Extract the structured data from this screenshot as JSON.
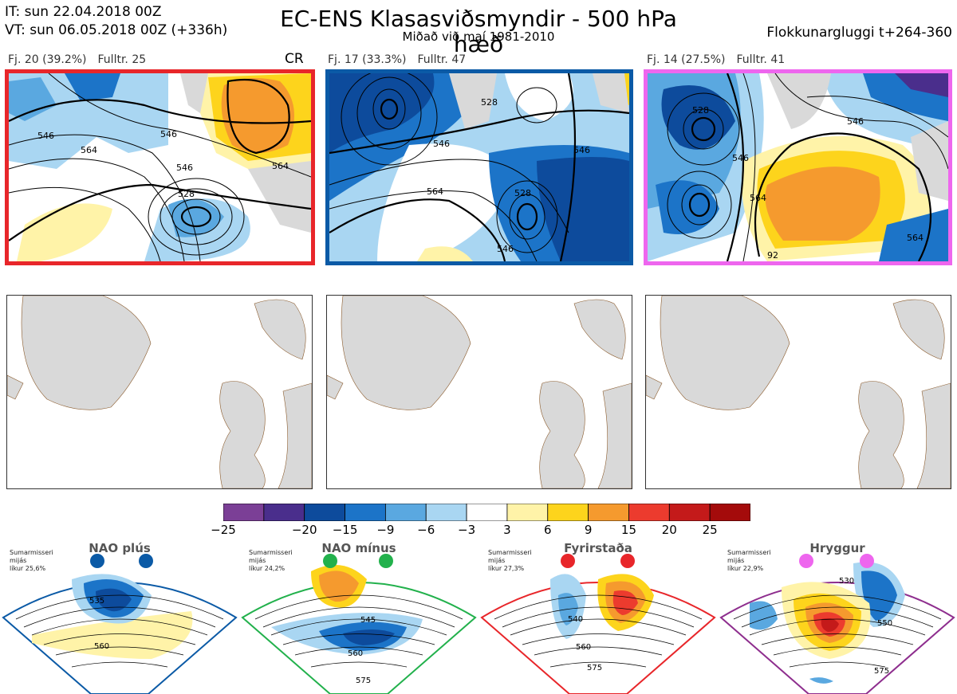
{
  "header": {
    "it_line": "IT: sun 22.04.2018 00Z",
    "vt_line": "VT: sun 06.05.2018 00Z  (+336h)",
    "title": "EC-ENS Klasasviðsmyndir - 500 hPa hæð",
    "subtitle": "Miðað við maí 1981-2010",
    "window": "Flokkunargluggi t+264-360"
  },
  "clusters": [
    {
      "count_label": "Fj. 20 (39.2%)",
      "rep_label": "Fulltr. 25",
      "border_color": "#e8262a",
      "contours": [
        "546",
        "564",
        "546",
        "528",
        "564",
        "546"
      ]
    },
    {
      "count_label": "Fj. 17 (33.3%)",
      "rep_label": "Fulltr. 47",
      "border_color": "#0b5aa6",
      "contours": [
        "528",
        "546",
        "564",
        "546",
        "528",
        "546"
      ]
    },
    {
      "count_label": "Fj. 14 (27.5%)",
      "rep_label": "Fulltr. 41",
      "border_color": "#ee66ee",
      "contours": [
        "528",
        "546",
        "546",
        "564",
        "564",
        "92"
      ]
    }
  ],
  "cr_label": "CR",
  "colorbar": {
    "colors": [
      "#7b3f96",
      "#4a2e8c",
      "#0d4b9c",
      "#1c74c8",
      "#5aa8e0",
      "#a9d6f2",
      "#ffffff",
      "#fff3a8",
      "#fdd41c",
      "#f59a2e",
      "#ec3b2e",
      "#c41a1a",
      "#a40b0b"
    ],
    "ticks": [
      "−25",
      "−20",
      "−15",
      "−9",
      "−6",
      "−3",
      "3",
      "6",
      "9",
      "15",
      "20",
      "25"
    ]
  },
  "regimes": [
    {
      "name": "NAO plús",
      "info": [
        "Sumarmisseri",
        "mijás",
        "líkur 25,6%"
      ],
      "color": "#0b5aa6",
      "labels": [
        "535",
        "560"
      ]
    },
    {
      "name": "NAO mínus",
      "info": [
        "Sumarmisseri",
        "mijás",
        "líkur 24,2%"
      ],
      "color": "#22b14c",
      "labels": [
        "545",
        "560",
        "575"
      ]
    },
    {
      "name": "Fyrirstaða",
      "info": [
        "Sumarmisseri",
        "mijás",
        "líkur 27,3%"
      ],
      "color": "#e8262a",
      "labels": [
        "540",
        "560",
        "575"
      ]
    },
    {
      "name": "Hryggur",
      "info": [
        "Sumarmisseri",
        "mijás",
        "líkur 22,9%"
      ],
      "color": "#ee66ee",
      "labels": [
        "530",
        "550",
        "575"
      ]
    }
  ]
}
